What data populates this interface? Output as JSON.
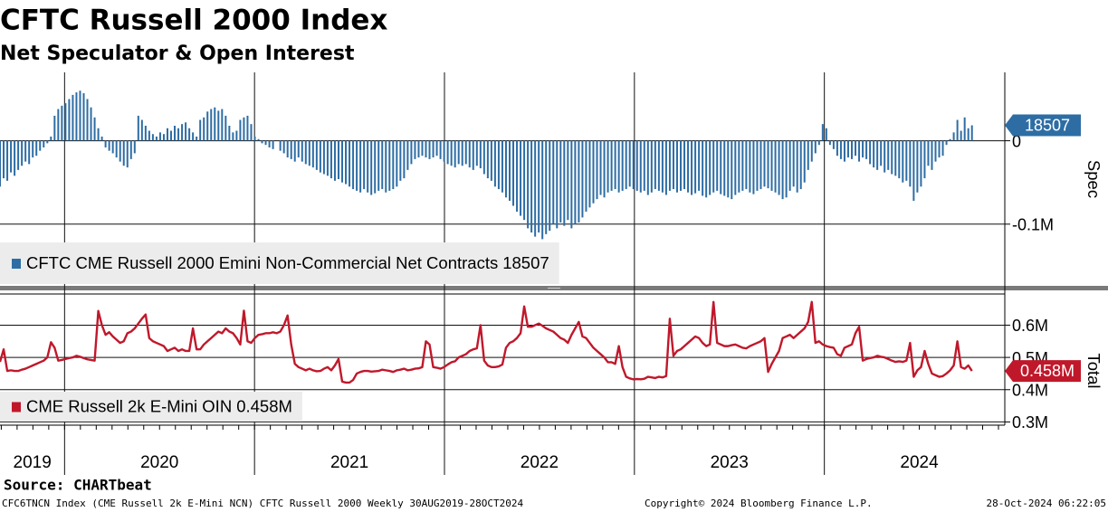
{
  "header": {
    "title": "CFTC Russell 2000 Index",
    "subtitle": "Net Speculator & Open Interest"
  },
  "x_axis": {
    "xlim": [
      2019.66,
      2024.95
    ],
    "year_lines": [
      2020,
      2021,
      2022,
      2023,
      2024
    ],
    "xticks": [
      {
        "value": 2019.83,
        "label": "2019"
      },
      {
        "value": 2020.5,
        "label": "2020"
      },
      {
        "value": 2021.5,
        "label": "2021"
      },
      {
        "value": 2022.5,
        "label": "2022"
      },
      {
        "value": 2023.5,
        "label": "2023"
      },
      {
        "value": 2024.5,
        "label": "2024"
      }
    ]
  },
  "chart_data": [
    {
      "type": "bar",
      "y_label": "Spec",
      "ylim": [
        -174000,
        82000
      ],
      "yticks": [
        {
          "value": 0,
          "label": "0"
        },
        {
          "value": -100000,
          "label": "-0.1M"
        }
      ],
      "grid": true,
      "legend": "bottom-left",
      "series": [
        {
          "name": "CFTC CME Russell 2000 Emini Non-Commercial Net Contracts",
          "color": "#2e6da4",
          "values": [
            -55000,
            -45000,
            -48000,
            -38000,
            -42000,
            -35000,
            -30000,
            -25000,
            -28000,
            -20000,
            -18000,
            -12000,
            -8000,
            -3000,
            5000,
            30000,
            38000,
            42000,
            45000,
            50000,
            55000,
            58000,
            60000,
            57000,
            50000,
            40000,
            28000,
            15000,
            5000,
            -8000,
            -12000,
            -15000,
            -20000,
            -25000,
            -30000,
            -32000,
            -22000,
            -15000,
            30000,
            25000,
            18000,
            12000,
            8000,
            5000,
            10000,
            8000,
            15000,
            12000,
            18000,
            15000,
            20000,
            22000,
            15000,
            10000,
            5000,
            25000,
            28000,
            35000,
            38000,
            40000,
            36000,
            38000,
            30000,
            18000,
            10000,
            12000,
            25000,
            28000,
            30000,
            20000,
            5000,
            2000,
            -3000,
            -5000,
            -8000,
            -10000,
            0,
            -12000,
            -15000,
            -20000,
            -22000,
            -25000,
            -20000,
            -25000,
            -28000,
            -30000,
            -32000,
            -35000,
            -38000,
            -40000,
            -42000,
            -45000,
            -48000,
            -46000,
            -50000,
            -52000,
            -55000,
            -58000,
            -60000,
            -62000,
            -58000,
            -62000,
            -65000,
            -63000,
            -60000,
            -58000,
            -62000,
            -60000,
            -58000,
            -55000,
            -48000,
            -45000,
            -35000,
            -28000,
            -22000,
            -20000,
            -18000,
            -20000,
            -22000,
            -20000,
            -18000,
            -22000,
            -25000,
            -28000,
            -30000,
            -32000,
            -28000,
            -30000,
            -28000,
            -32000,
            -35000,
            -30000,
            -33000,
            -40000,
            -45000,
            -48000,
            -55000,
            -58000,
            -62000,
            -68000,
            -72000,
            -78000,
            -85000,
            -90000,
            -95000,
            -105000,
            -110000,
            -115000,
            -110000,
            -118000,
            -112000,
            -108000,
            -100000,
            -105000,
            -98000,
            -102000,
            -95000,
            -105000,
            -100000,
            -98000,
            -92000,
            -85000,
            -80000,
            -75000,
            -70000,
            -65000,
            -68000,
            -62000,
            -60000,
            -58000,
            -62000,
            -60000,
            -58000,
            -55000,
            -58000,
            -60000,
            -62000,
            -60000,
            -65000,
            -62000,
            -58000,
            -60000,
            -62000,
            -65000,
            -60000,
            -58000,
            -62000,
            -60000,
            -58000,
            -62000,
            -65000,
            -63000,
            -60000,
            -66000,
            -68000,
            -65000,
            -62000,
            -60000,
            -64000,
            -66000,
            -68000,
            -70000,
            -65000,
            -62000,
            -60000,
            -58000,
            -62000,
            -64000,
            -60000,
            -58000,
            -55000,
            -57000,
            -60000,
            -62000,
            -65000,
            -70000,
            -68000,
            -60000,
            -55000,
            -62000,
            -58000,
            -50000,
            -35000,
            -25000,
            -15000,
            -5000,
            20000,
            15000,
            -5000,
            -10000,
            -18000,
            -22000,
            -25000,
            -20000,
            -22000,
            -18000,
            -25000,
            -20000,
            -22000,
            -28000,
            -32000,
            -35000,
            -30000,
            -38000,
            -35000,
            -40000,
            -42000,
            -45000,
            -50000,
            -48000,
            -55000,
            -72000,
            -62000,
            -55000,
            -45000,
            -30000,
            -35000,
            -25000,
            -20000,
            -18000,
            -5000,
            2000,
            10000,
            25000,
            12000,
            28000,
            15000,
            18507
          ]
        }
      ]
    },
    {
      "type": "line",
      "y_label": "Total",
      "ylim": [
        290000,
        705000
      ],
      "yticks": [
        {
          "value": 600000,
          "label": "0.6M"
        },
        {
          "value": 500000,
          "label": "0.5M"
        },
        {
          "value": 400000,
          "label": "0.4M"
        },
        {
          "value": 300000,
          "label": "0.3M"
        }
      ],
      "grid": true,
      "legend": "bottom-left",
      "series": [
        {
          "name": "CME Russell 2k E-Mini OIN",
          "color": "#c0182b",
          "last_value_label": "0.458M",
          "values": [
            486000,
            525000,
            458000,
            460000,
            458000,
            458000,
            462000,
            465000,
            470000,
            475000,
            480000,
            485000,
            490000,
            500000,
            547000,
            530000,
            490000,
            492000,
            495000,
            498000,
            500000,
            505000,
            502000,
            498000,
            494000,
            492000,
            490000,
            644000,
            600000,
            570000,
            578000,
            565000,
            555000,
            545000,
            550000,
            575000,
            580000,
            590000,
            605000,
            620000,
            633000,
            560000,
            550000,
            545000,
            540000,
            535000,
            520000,
            525000,
            530000,
            520000,
            525000,
            520000,
            520000,
            590000,
            525000,
            525000,
            540000,
            550000,
            560000,
            570000,
            580000,
            575000,
            590000,
            580000,
            575000,
            560000,
            540000,
            645000,
            550000,
            545000,
            560000,
            570000,
            572000,
            575000,
            575000,
            578000,
            575000,
            580000,
            600000,
            630000,
            540000,
            480000,
            470000,
            465000,
            460000,
            465000,
            460000,
            457000,
            458000,
            465000,
            470000,
            460000,
            475000,
            495000,
            425000,
            422000,
            422000,
            430000,
            450000,
            455000,
            458000,
            458000,
            456000,
            457000,
            458000,
            462000,
            460000,
            458000,
            455000,
            460000,
            462000,
            465000,
            460000,
            462000,
            465000,
            466000,
            470000,
            550000,
            540000,
            470000,
            468000,
            465000,
            470000,
            478000,
            485000,
            488000,
            500000,
            505000,
            510000,
            520000,
            525000,
            528000,
            600000,
            490000,
            475000,
            470000,
            470000,
            472000,
            478000,
            530000,
            545000,
            550000,
            560000,
            575000,
            658000,
            595000,
            595000,
            600000,
            605000,
            598000,
            590000,
            585000,
            580000,
            570000,
            560000,
            555000,
            545000,
            570000,
            590000,
            610000,
            565000,
            560000,
            545000,
            530000,
            520000,
            510000,
            500000,
            485000,
            485000,
            480000,
            535000,
            470000,
            440000,
            435000,
            432000,
            433000,
            432000,
            434000,
            440000,
            438000,
            436000,
            440000,
            438000,
            442000,
            620000,
            505000,
            520000,
            525000,
            535000,
            545000,
            555000,
            565000,
            560000,
            545000,
            535000,
            540000,
            672000,
            545000,
            540000,
            535000,
            535000,
            538000,
            540000,
            535000,
            530000,
            528000,
            535000,
            540000,
            545000,
            550000,
            560000,
            455000,
            480000,
            500000,
            520000,
            560000,
            565000,
            570000,
            560000,
            570000,
            580000,
            590000,
            610000,
            672000,
            545000,
            550000,
            540000,
            535000,
            532000,
            530000,
            510000,
            505000,
            530000,
            535000,
            540000,
            575000,
            595000,
            490000,
            495000,
            498000,
            500000,
            505000,
            502000,
            500000,
            495000,
            490000,
            486000,
            488000,
            486000,
            490000,
            545000,
            440000,
            460000,
            470000,
            520000,
            480000,
            450000,
            445000,
            440000,
            442000,
            450000,
            460000,
            475000,
            550000,
            470000,
            465000,
            475000,
            458000
          ]
        }
      ]
    }
  ],
  "footer": {
    "source": "Source: CHARTbeat",
    "ticker": "CFC6TNCN Index (CME Russell 2k E-Mini NCN) CFTC Russell 2000  Weekly 30AUG2019-28OCT2024",
    "copyright": "Copyright© 2024 Bloomberg Finance L.P.",
    "timestamp": "28-Oct-2024 06:22:05"
  }
}
